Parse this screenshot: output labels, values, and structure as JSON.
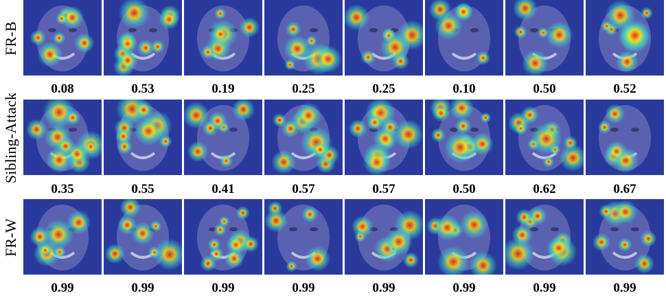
{
  "rows": [
    {
      "label": "FR-B",
      "scores": [
        "0.08",
        "0.53",
        "0.19",
        "0.25",
        "0.25",
        "0.10",
        "0.50",
        "0.52"
      ]
    },
    {
      "label": "Sibling-Attack",
      "scores": [
        "0.35",
        "0.55",
        "0.41",
        "0.57",
        "0.57",
        "0.50",
        "0.62",
        "0.67"
      ]
    },
    {
      "label": "FR-W",
      "scores": [
        "0.99",
        "0.99",
        "0.99",
        "0.99",
        "0.99",
        "0.99",
        "0.99",
        "0.99"
      ]
    }
  ],
  "colors": {
    "background": "#ffffff",
    "overlay_base": "#2a3a9c",
    "heat_high": "#e8261c",
    "heat_mid": "#f4e21a",
    "heat_low": "#3fd6c8"
  }
}
